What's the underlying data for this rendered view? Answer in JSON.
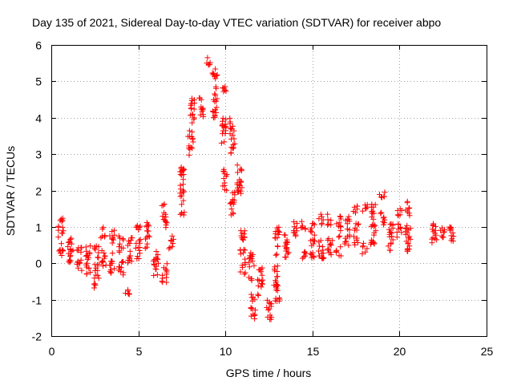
{
  "chart_data": {
    "type": "scatter",
    "title": "Day 135 of 2021, Sidereal Day-to-day VTEC variation (SDTVAR) for receiver abpo",
    "xlabel": "GPS time / hours",
    "ylabel": "SDTVAR / TECUs",
    "xlim": [
      0,
      25
    ],
    "ylim": [
      -2,
      6
    ],
    "xticks": [
      0,
      5,
      10,
      15,
      20,
      25
    ],
    "yticks": [
      -2,
      -1,
      0,
      1,
      2,
      3,
      4,
      5,
      6
    ],
    "grid": true,
    "marker": "plus",
    "color": "#ff0000",
    "clusters": [
      [
        0.55,
        0.7,
        0.55
      ],
      [
        1.1,
        0.5,
        0.2
      ],
      [
        1.1,
        0.15,
        0.25
      ],
      [
        1.6,
        0.35,
        0.15
      ],
      [
        1.6,
        0.0,
        0.2
      ],
      [
        2.1,
        0.35,
        0.15
      ],
      [
        2.1,
        0.0,
        0.3
      ],
      [
        2.6,
        0.3,
        0.2
      ],
      [
        2.6,
        -0.35,
        0.35
      ],
      [
        3.0,
        0.85,
        0.15
      ],
      [
        3.0,
        0.15,
        0.25
      ],
      [
        3.5,
        0.75,
        0.2
      ],
      [
        3.5,
        0.0,
        0.3
      ],
      [
        4.0,
        0.55,
        0.25
      ],
      [
        4.0,
        -0.15,
        0.25
      ],
      [
        4.5,
        0.6,
        0.15
      ],
      [
        4.5,
        0.2,
        0.2
      ],
      [
        4.4,
        -0.8,
        0.08
      ],
      [
        5.0,
        1.0,
        0.08
      ],
      [
        5.0,
        0.4,
        0.3
      ],
      [
        5.5,
        0.8,
        0.4
      ],
      [
        6.0,
        0.2,
        0.2
      ],
      [
        6.0,
        -0.15,
        0.2
      ],
      [
        6.5,
        1.3,
        0.35
      ],
      [
        6.5,
        -0.3,
        0.3
      ],
      [
        6.9,
        0.6,
        0.2
      ],
      [
        7.5,
        2.0,
        0.7
      ],
      [
        8.0,
        3.3,
        0.35
      ],
      [
        8.1,
        4.2,
        0.4
      ],
      [
        8.6,
        4.3,
        0.3
      ],
      [
        9.0,
        5.5,
        0.15
      ],
      [
        9.4,
        5.2,
        0.2
      ],
      [
        9.4,
        4.4,
        0.45
      ],
      [
        9.9,
        4.8,
        0.1
      ],
      [
        9.9,
        3.7,
        0.4
      ],
      [
        10.4,
        3.5,
        0.5
      ],
      [
        10.0,
        2.3,
        0.3
      ],
      [
        10.4,
        1.6,
        0.35
      ],
      [
        10.8,
        2.3,
        0.5
      ],
      [
        11.0,
        0.3,
        0.6
      ],
      [
        11.5,
        -0.1,
        0.4
      ],
      [
        11.6,
        -1.2,
        0.35
      ],
      [
        12.0,
        -0.5,
        0.4
      ],
      [
        12.5,
        -1.3,
        0.35
      ],
      [
        12.9,
        -0.5,
        0.45
      ],
      [
        13.0,
        0.6,
        0.4
      ],
      [
        13.0,
        -1.0,
        0.1
      ],
      [
        13.5,
        0.5,
        0.4
      ],
      [
        14.0,
        1.0,
        0.25
      ],
      [
        14.5,
        1.0,
        0.15
      ],
      [
        14.5,
        0.2,
        0.12
      ],
      [
        15.0,
        0.8,
        0.35
      ],
      [
        15.0,
        0.2,
        0.1
      ],
      [
        15.5,
        1.2,
        0.15
      ],
      [
        15.5,
        0.4,
        0.35
      ],
      [
        16.0,
        1.2,
        0.15
      ],
      [
        16.0,
        0.5,
        0.3
      ],
      [
        16.5,
        1.0,
        0.3
      ],
      [
        16.5,
        0.35,
        0.15
      ],
      [
        17.0,
        1.2,
        0.15
      ],
      [
        17.0,
        0.7,
        0.25
      ],
      [
        17.5,
        1.5,
        0.12
      ],
      [
        17.5,
        0.8,
        0.3
      ],
      [
        18.0,
        1.5,
        0.15
      ],
      [
        18.0,
        0.4,
        0.15
      ],
      [
        18.5,
        1.3,
        0.35
      ],
      [
        18.5,
        0.8,
        0.3
      ],
      [
        19.0,
        1.9,
        0.1
      ],
      [
        19.0,
        1.2,
        0.2
      ],
      [
        19.5,
        1.0,
        0.2
      ],
      [
        19.5,
        0.6,
        0.25
      ],
      [
        20.0,
        1.4,
        0.1
      ],
      [
        20.0,
        0.9,
        0.2
      ],
      [
        20.5,
        1.5,
        0.2
      ],
      [
        20.5,
        0.8,
        0.35
      ],
      [
        20.5,
        0.4,
        0.1
      ],
      [
        22.0,
        1.0,
        0.1
      ],
      [
        22.0,
        0.7,
        0.2
      ],
      [
        22.5,
        0.8,
        0.2
      ],
      [
        23.0,
        1.0,
        0.1
      ],
      [
        23.0,
        0.7,
        0.15
      ]
    ]
  }
}
